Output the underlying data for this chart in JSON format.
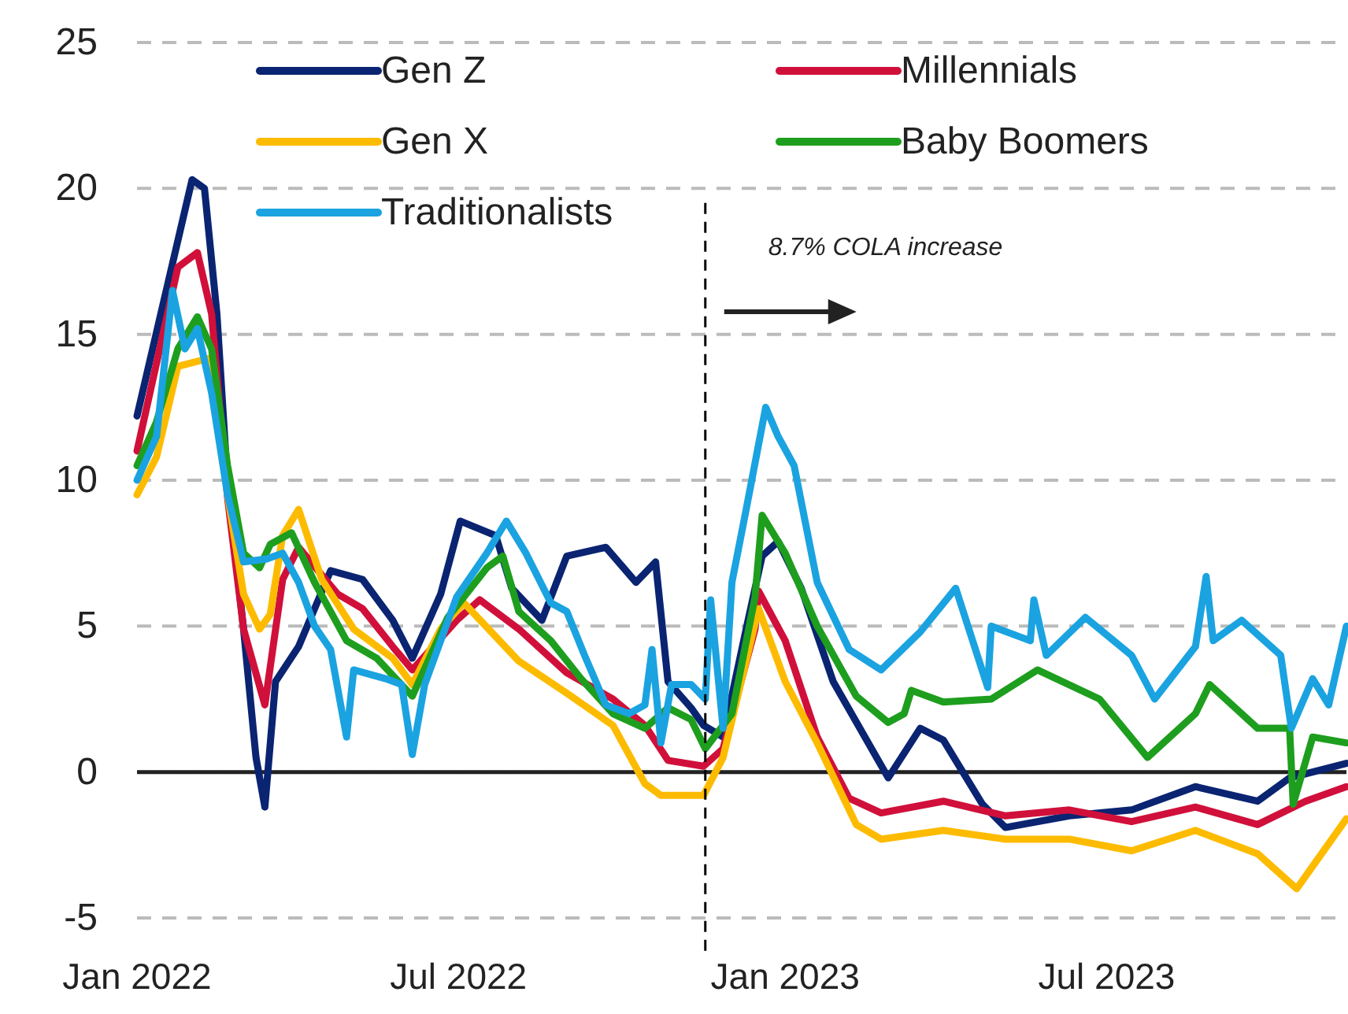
{
  "chart_data": {
    "type": "line",
    "xlim": [
      "2022-01-01",
      "2023-11-13"
    ],
    "xticks": [
      {
        "value": "2022-01-01",
        "label": "Jan 2022"
      },
      {
        "value": "2022-07-01",
        "label": "Jul 2022"
      },
      {
        "value": "2023-01-01",
        "label": "Jan 2023"
      },
      {
        "value": "2023-07-01",
        "label": "Jul 2023"
      }
    ],
    "ylim": [
      -5,
      25
    ],
    "yticks": [
      -5,
      0,
      5,
      10,
      15,
      20,
      25
    ],
    "grid": "y",
    "legend": "top left",
    "line_style": "solid",
    "marker": "none",
    "ref_lines": [
      {
        "axis": "x",
        "value": "2022-11-17",
        "label": "8.7% COLA increase",
        "line_style": "dashed",
        "color": "#000000"
      }
    ],
    "series": [
      {
        "name": "Gen Z",
        "color": "#0a2472",
        "x": [
          "2022-01-01",
          "2022-02-01",
          "2022-02-08",
          "2022-02-15",
          "2022-02-21",
          "2022-03-02",
          "2022-03-09",
          "2022-03-14",
          "2022-03-20",
          "2022-04-02",
          "2022-04-20",
          "2022-05-08",
          "2022-05-25",
          "2022-06-05",
          "2022-06-21",
          "2022-07-02",
          "2022-07-22",
          "2022-07-31",
          "2022-08-17",
          "2022-08-31",
          "2022-09-22",
          "2022-10-09",
          "2022-10-20",
          "2022-10-27",
          "2022-11-09",
          "2022-11-16",
          "2022-11-27",
          "2022-12-10",
          "2022-12-19",
          "2022-12-28",
          "2023-01-10",
          "2023-01-28",
          "2023-02-28",
          "2023-03-18",
          "2023-03-31",
          "2023-04-22",
          "2023-05-05",
          "2023-06-10",
          "2023-07-15",
          "2023-08-20",
          "2023-09-24",
          "2023-10-12",
          "2023-11-13"
        ],
        "values": [
          12.2,
          20.3,
          20,
          15.7,
          9.9,
          4.9,
          0.5,
          -1.2,
          3.1,
          4.3,
          6.9,
          6.6,
          5.2,
          3.9,
          6.1,
          8.6,
          8.1,
          6.3,
          5.2,
          7.4,
          7.7,
          6.5,
          7.2,
          3.1,
          2.2,
          1.6,
          1.2,
          4.9,
          7.4,
          7.9,
          6.3,
          3.1,
          -0.2,
          1.5,
          1.1,
          -1.1,
          -1.9,
          -1.5,
          -1.3,
          -0.5,
          -1,
          -0.2,
          0.3
        ]
      },
      {
        "name": "Millennials",
        "color": "#d0103a",
        "x": [
          "2022-01-01",
          "2022-01-24",
          "2022-02-04",
          "2022-02-12",
          "2022-02-21",
          "2022-03-02",
          "2022-03-14",
          "2022-03-24",
          "2022-04-02",
          "2022-04-24",
          "2022-05-08",
          "2022-05-25",
          "2022-06-05",
          "2022-06-30",
          "2022-07-13",
          "2022-08-04",
          "2022-08-31",
          "2022-09-26",
          "2022-10-14",
          "2022-10-27",
          "2022-11-16",
          "2022-11-27",
          "2022-12-15",
          "2022-12-17",
          "2023-01-01",
          "2023-01-19",
          "2023-02-06",
          "2023-02-24",
          "2023-03-31",
          "2023-05-05",
          "2023-06-10",
          "2023-07-15",
          "2023-08-20",
          "2023-09-24",
          "2023-10-21",
          "2023-11-13"
        ],
        "values": [
          11,
          17.3,
          17.8,
          15.7,
          9.4,
          4.9,
          2.3,
          6.6,
          7.7,
          6.1,
          5.6,
          4.3,
          3.5,
          5.2,
          5.9,
          4.9,
          3.4,
          2.5,
          1.6,
          0.4,
          0.2,
          0.8,
          4.9,
          6.2,
          4.5,
          1.2,
          -0.9,
          -1.4,
          -1,
          -1.5,
          -1.3,
          -1.7,
          -1.2,
          -1.8,
          -1,
          -0.5
        ]
      },
      {
        "name": "Gen X",
        "color": "#fdbb00",
        "x": [
          "2022-01-01",
          "2022-01-12",
          "2022-01-24",
          "2022-02-12",
          "2022-02-21",
          "2022-03-02",
          "2022-03-11",
          "2022-03-17",
          "2022-03-24",
          "2022-04-02",
          "2022-04-15",
          "2022-05-03",
          "2022-05-25",
          "2022-06-05",
          "2022-06-21",
          "2022-07-04",
          "2022-08-04",
          "2022-08-31",
          "2022-09-26",
          "2022-10-14",
          "2022-10-23",
          "2022-11-16",
          "2022-11-27",
          "2022-12-17",
          "2023-01-01",
          "2023-01-19",
          "2023-02-10",
          "2023-02-24",
          "2023-03-31",
          "2023-05-05",
          "2023-06-10",
          "2023-07-15",
          "2023-08-20",
          "2023-09-24",
          "2023-10-16",
          "2023-11-13"
        ],
        "values": [
          9.5,
          10.8,
          13.9,
          14.2,
          9.5,
          6.1,
          4.9,
          5.4,
          8.1,
          9,
          6.6,
          4.9,
          3.9,
          3,
          4.9,
          5.8,
          3.8,
          2.7,
          1.6,
          -0.4,
          -0.8,
          -0.8,
          0.5,
          5.6,
          3.1,
          1,
          -1.8,
          -2.3,
          -2,
          -2.3,
          -2.3,
          -2.7,
          -2,
          -2.8,
          -4,
          -1.6
        ]
      },
      {
        "name": "Baby Boomers",
        "color": "#1e9e1e",
        "x": [
          "2022-01-01",
          "2022-01-12",
          "2022-01-24",
          "2022-02-04",
          "2022-02-12",
          "2022-02-21",
          "2022-03-02",
          "2022-03-11",
          "2022-03-17",
          "2022-03-29",
          "2022-04-11",
          "2022-04-29",
          "2022-05-16",
          "2022-06-05",
          "2022-06-25",
          "2022-07-17",
          "2022-07-26",
          "2022-08-04",
          "2022-08-22",
          "2022-09-08",
          "2022-09-26",
          "2022-10-14",
          "2022-10-27",
          "2022-11-09",
          "2022-11-17",
          "2022-12-02",
          "2022-12-15",
          "2022-12-19",
          "2023-01-01",
          "2023-01-19",
          "2023-02-10",
          "2023-02-28",
          "2023-03-09",
          "2023-03-13",
          "2023-03-31",
          "2023-04-27",
          "2023-05-23",
          "2023-06-27",
          "2023-07-24",
          "2023-08-20",
          "2023-08-28",
          "2023-09-24",
          "2023-10-12",
          "2023-10-14",
          "2023-10-25",
          "2023-11-13"
        ],
        "values": [
          10.5,
          12,
          14.5,
          15.6,
          14.5,
          10.5,
          7.5,
          7,
          7.8,
          8.2,
          6.5,
          4.5,
          3.9,
          2.6,
          5.3,
          7,
          7.4,
          5.5,
          4.5,
          3.2,
          2,
          1.5,
          2.2,
          1.8,
          0.8,
          2,
          6,
          8.8,
          7.5,
          5,
          2.6,
          1.7,
          2,
          2.8,
          2.4,
          2.5,
          3.5,
          2.5,
          0.5,
          2,
          3,
          1.5,
          1.5,
          -1.1,
          1.2,
          1
        ]
      },
      {
        "name": "Traditionalists",
        "color": "#1aa3e0",
        "x": [
          "2022-01-01",
          "2022-01-12",
          "2022-01-21",
          "2022-01-28",
          "2022-02-04",
          "2022-02-12",
          "2022-02-21",
          "2022-03-02",
          "2022-03-15",
          "2022-03-24",
          "2022-04-02",
          "2022-04-11",
          "2022-04-20",
          "2022-04-29",
          "2022-05-03",
          "2022-05-21",
          "2022-05-30",
          "2022-06-05",
          "2022-06-12",
          "2022-06-30",
          "2022-07-17",
          "2022-07-28",
          "2022-08-08",
          "2022-08-22",
          "2022-08-31",
          "2022-09-10",
          "2022-09-22",
          "2022-10-05",
          "2022-10-14",
          "2022-10-18",
          "2022-10-23",
          "2022-10-29",
          "2022-11-09",
          "2022-11-17",
          "2022-11-20",
          "2022-11-27",
          "2022-12-02",
          "2022-12-10",
          "2022-12-21",
          "2022-12-28",
          "2023-01-06",
          "2023-01-19",
          "2023-02-06",
          "2023-02-24",
          "2023-03-18",
          "2023-04-07",
          "2023-04-25",
          "2023-04-27",
          "2023-05-19",
          "2023-05-21",
          "2023-05-28",
          "2023-06-19",
          "2023-07-15",
          "2023-07-28",
          "2023-08-20",
          "2023-08-26",
          "2023-08-30",
          "2023-09-15",
          "2023-10-07",
          "2023-10-13",
          "2023-10-25",
          "2023-11-03",
          "2023-11-13"
        ],
        "values": [
          10,
          11.5,
          16.5,
          14.5,
          15.2,
          13,
          9.5,
          7.2,
          7.3,
          7.5,
          6.5,
          5,
          4.2,
          1.2,
          3.5,
          3.2,
          3,
          0.6,
          3,
          6,
          7.5,
          8.6,
          7.5,
          5.8,
          5.5,
          4,
          2.3,
          2,
          2.3,
          4.2,
          1,
          3,
          3,
          2.5,
          5.9,
          1.5,
          6.5,
          9,
          12.5,
          11.5,
          10.5,
          6.5,
          4.2,
          3.5,
          4.8,
          6.3,
          2.9,
          5,
          4.5,
          5.9,
          4,
          5.3,
          4,
          2.5,
          4.3,
          6.7,
          4.5,
          5.2,
          4,
          1.5,
          3.2,
          2.3,
          5
        ]
      }
    ]
  }
}
